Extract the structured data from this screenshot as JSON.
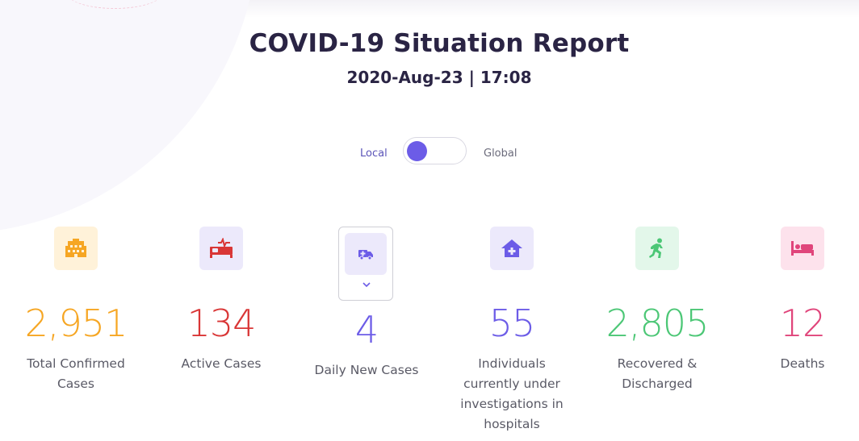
{
  "header": {
    "title": "COVID-19 Situation Report",
    "datetime": "2020-Aug-23 | 17:08"
  },
  "toggle": {
    "left_label": "Local",
    "right_label": "Global",
    "selected": "Local"
  },
  "colors": {
    "title": "#2a2444",
    "accent": "#6c5ce7",
    "confirmed": "#f6a623",
    "active": "#d93636",
    "daily": "#6c5ce7",
    "investigation": "#6c5ce7",
    "recovered": "#4cc776",
    "deaths": "#e0457b"
  },
  "stats": [
    {
      "key": "total_confirmed",
      "value": "2,951",
      "label": "Total Confirmed Cases",
      "icon": "hospital-building-icon"
    },
    {
      "key": "active",
      "value": "134",
      "label": "Active Cases",
      "icon": "patient-bed-monitor-icon"
    },
    {
      "key": "daily_new",
      "value": "4",
      "label": "Daily New Cases",
      "icon": "ambulance-icon"
    },
    {
      "key": "under_investigation",
      "value": "55",
      "label": "Individuals currently under investigations in hospitals",
      "icon": "medical-house-icon"
    },
    {
      "key": "recovered",
      "value": "2,805",
      "label": "Recovered & Discharged",
      "icon": "running-person-icon"
    },
    {
      "key": "deaths",
      "value": "12",
      "label": "Deaths",
      "icon": "bed-icon"
    }
  ]
}
